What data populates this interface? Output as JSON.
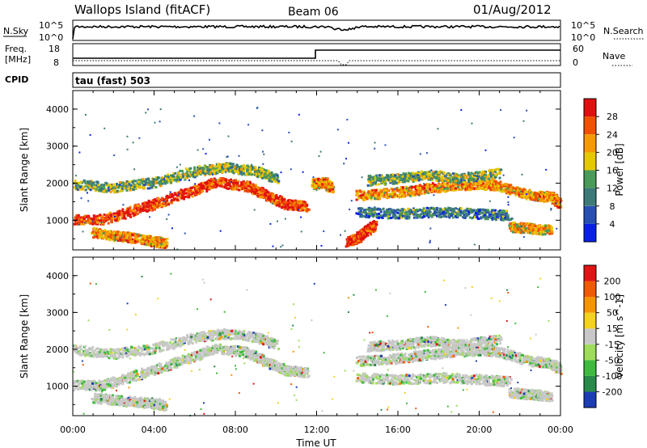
{
  "header": {
    "station": "Wallops Island (fitACF)",
    "beam": "Beam 06",
    "date": "01/Aug/2012"
  },
  "top_panels": {
    "nsky_label": "N.Sky",
    "nsky_ticks": [
      "10^5",
      "10^0"
    ],
    "nsearch_label": "N.Search",
    "nsearch_ticks": [
      "10^5",
      "10^0"
    ],
    "freq_label": "Freq.",
    "freq_unit": "[MHz]",
    "freq_ticks": [
      "18",
      "8"
    ],
    "nave_label": "Nave",
    "nave_ticks": [
      "60",
      "0"
    ],
    "cpid_label": "CPID",
    "cpid_value": "tau (fast) 503"
  },
  "chart_data": [
    {
      "type": "heatmap",
      "name": "power",
      "ylabel": "Slant Range [km]",
      "ylim": [
        200,
        4500
      ],
      "yticks": [
        1000,
        2000,
        3000,
        4000
      ],
      "xlim": [
        0,
        24
      ],
      "colorbar_label": "Power [dB]",
      "colorbar_ticks": [
        "4",
        "8",
        "12",
        "16",
        "20",
        "24",
        "28"
      ],
      "colorbar_colors": [
        "#0a1fe6",
        "#2850b4",
        "#3c7a78",
        "#4a9a5a",
        "#e6c800",
        "#f59a00",
        "#f05000",
        "#e01010"
      ],
      "features": [
        {
          "t": [
            0.0,
            1.5,
            3.0,
            4.5,
            6.0,
            7.0,
            8.5,
            9.5,
            10.5,
            11.5
          ],
          "r": [
            1050,
            1050,
            1300,
            1550,
            1850,
            2050,
            1950,
            1700,
            1450,
            1400
          ],
          "level": 0.85
        },
        {
          "t": [
            0.0,
            2.0,
            4.0,
            6.0,
            7.5,
            9.0,
            10.0
          ],
          "r": [
            2000,
            1900,
            2050,
            2350,
            2450,
            2350,
            2150
          ],
          "level": 0.45
        },
        {
          "t": [
            1.0,
            2.0,
            3.0,
            4.0,
            4.5
          ],
          "r": [
            700,
            600,
            550,
            450,
            400
          ],
          "level": 0.7
        },
        {
          "t": [
            13.5,
            14.0,
            14.3,
            14.8
          ],
          "r": [
            450,
            550,
            700,
            900
          ],
          "level": 0.9
        },
        {
          "t": [
            14.0,
            15.5,
            17.0,
            18.5,
            20.0,
            21.0,
            22.5,
            23.5,
            24.0
          ],
          "r": [
            1700,
            1750,
            1850,
            1950,
            2000,
            1950,
            1700,
            1650,
            1450
          ],
          "level": 0.7
        },
        {
          "t": [
            14.5,
            16.0,
            17.5,
            19.0,
            21.0
          ],
          "r": [
            2100,
            2150,
            2250,
            2150,
            2300
          ],
          "level": 0.45
        },
        {
          "t": [
            14.0,
            16.0,
            18.0,
            20.0,
            21.5
          ],
          "r": [
            1250,
            1200,
            1250,
            1200,
            1150
          ],
          "level": 0.3
        },
        {
          "t": [
            21.5,
            22.5,
            23.5
          ],
          "r": [
            850,
            800,
            750
          ],
          "level": 0.65
        },
        {
          "t": [
            11.8,
            12.3,
            12.7
          ],
          "r": [
            2000,
            2050,
            1900
          ],
          "level": 0.7
        }
      ]
    },
    {
      "type": "heatmap",
      "name": "velocity",
      "xlabel": "Time UT",
      "ylabel": "Slant Range [km]",
      "ylim": [
        200,
        4500
      ],
      "yticks": [
        1000,
        2000,
        3000,
        4000
      ],
      "xlim": [
        0,
        24
      ],
      "xticks": [
        "00:00",
        "04:00",
        "08:00",
        "12:00",
        "16:00",
        "20:00",
        "00:00"
      ],
      "colorbar_label": "Velocity [m s^-1]",
      "colorbar_ticks": [
        "200",
        "100",
        "50",
        "15",
        "-15",
        "-50",
        "-100",
        "-200"
      ],
      "colorbar_colors": [
        "#1c3cb4",
        "#2a8a4a",
        "#3fba3f",
        "#9edc5a",
        "#c8c8c8",
        "#f5d21e",
        "#f59600",
        "#f05a00",
        "#e01414"
      ],
      "features": [
        {
          "t": [
            0.0,
            1.5,
            3.0,
            4.5,
            6.0,
            7.0,
            8.5,
            9.5,
            10.5,
            11.5
          ],
          "r": [
            1050,
            1050,
            1300,
            1550,
            1850,
            2050,
            1950,
            1700,
            1450,
            1400
          ],
          "level": 0.5
        },
        {
          "t": [
            0.0,
            2.0,
            4.0,
            6.0,
            7.5,
            9.0,
            10.0
          ],
          "r": [
            2000,
            1900,
            2050,
            2350,
            2450,
            2350,
            2150
          ],
          "level": 0.5
        },
        {
          "t": [
            1.0,
            2.0,
            3.0,
            4.0,
            4.5
          ],
          "r": [
            700,
            650,
            600,
            550,
            500
          ],
          "level": 0.5
        },
        {
          "t": [
            14.0,
            15.5,
            17.0,
            18.5,
            20.0,
            21.0,
            22.5,
            23.5,
            24.0
          ],
          "r": [
            1700,
            1750,
            1850,
            1950,
            2000,
            1950,
            1700,
            1650,
            1450
          ],
          "level": 0.5
        },
        {
          "t": [
            14.5,
            16.0,
            17.5,
            19.0,
            21.0
          ],
          "r": [
            2100,
            2150,
            2250,
            2150,
            2300
          ],
          "level": 0.5
        },
        {
          "t": [
            14.0,
            16.0,
            18.0,
            20.0,
            21.5
          ],
          "r": [
            1250,
            1200,
            1250,
            1200,
            1150
          ],
          "level": 0.5
        },
        {
          "t": [
            21.5,
            22.5,
            23.5
          ],
          "r": [
            850,
            800,
            750
          ],
          "level": 0.5
        }
      ]
    }
  ]
}
